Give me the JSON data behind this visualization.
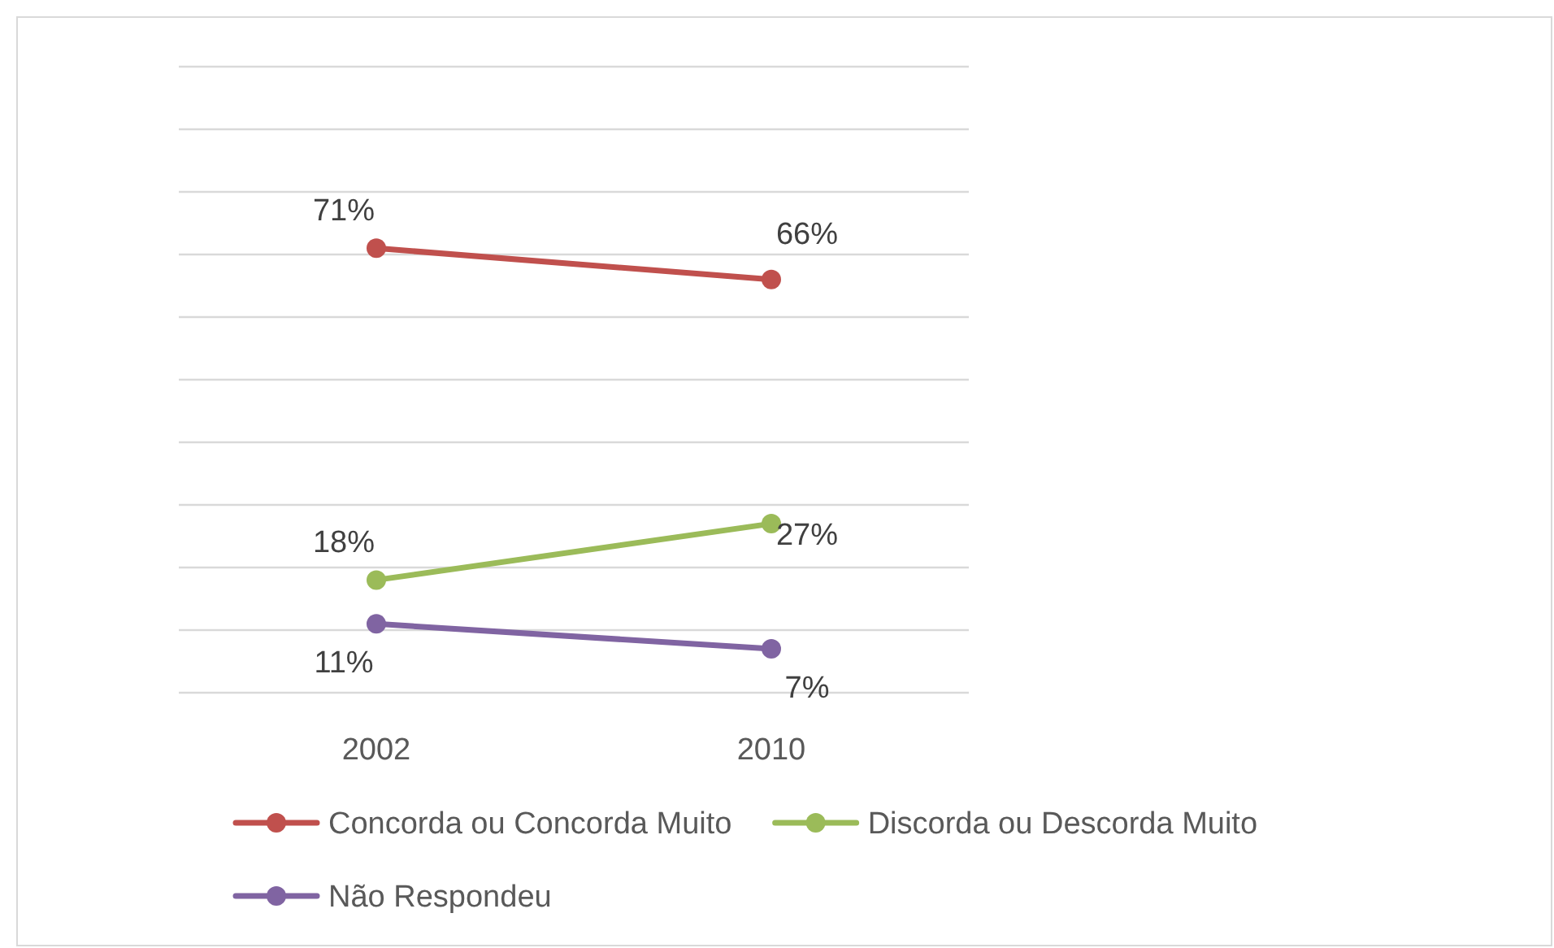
{
  "chart_data": {
    "type": "line",
    "categories": [
      "2002",
      "2010"
    ],
    "series": [
      {
        "name": "Concorda ou Concorda Muito",
        "color": "#c0504d",
        "values": [
          71,
          66
        ],
        "value_labels": [
          "71%",
          "66%"
        ]
      },
      {
        "name": "Discorda ou Descorda Muito",
        "color": "#9bbb59",
        "values": [
          18,
          27
        ],
        "value_labels": [
          "18%",
          "27%"
        ]
      },
      {
        "name": "Não Respondeu",
        "color": "#8064a2",
        "values": [
          11,
          7
        ],
        "value_labels": [
          "11%",
          "7%"
        ]
      }
    ],
    "ylim": [
      0,
      100
    ],
    "tick_labels": "x",
    "grid": "y",
    "legend": "bottom",
    "marker": "circle",
    "line_style": "solid"
  }
}
